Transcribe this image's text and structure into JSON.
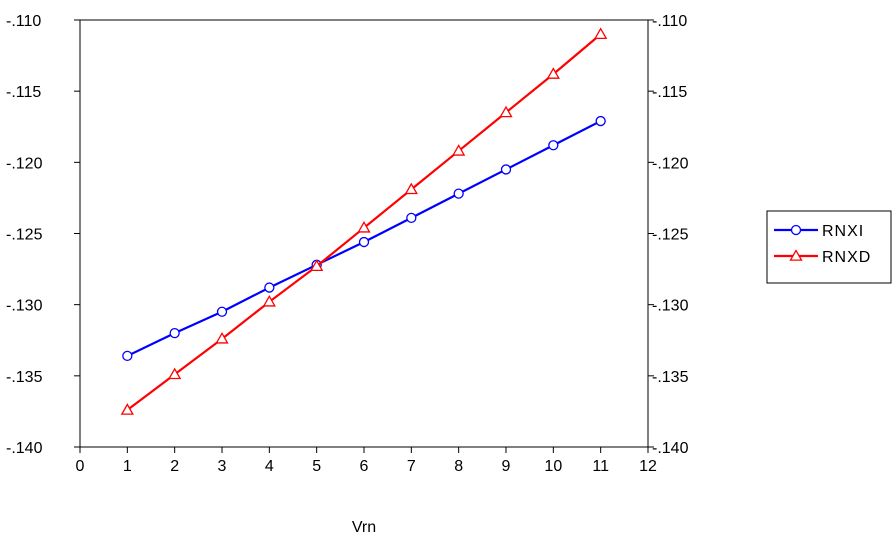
{
  "chart_data": {
    "type": "line",
    "title": "",
    "xlabel": "Vrn",
    "ylabel": "",
    "xlim": [
      0,
      12
    ],
    "ylim": [
      -0.14,
      -0.11
    ],
    "x_ticks": [
      "0",
      "1",
      "2",
      "3",
      "4",
      "5",
      "6",
      "7",
      "8",
      "9",
      "10",
      "11",
      "12"
    ],
    "y_ticks": [
      "-.110",
      "-.115",
      "-.120",
      "-.125",
      "-.130",
      "-.135",
      "-.140"
    ],
    "y_tick_values": [
      -0.11,
      -0.115,
      -0.12,
      -0.125,
      -0.13,
      -0.135,
      -0.14
    ],
    "right_axis": true,
    "grid": false,
    "legend_position": "right",
    "x": [
      1,
      2,
      3,
      4,
      5,
      6,
      7,
      8,
      9,
      10,
      11
    ],
    "series": [
      {
        "name": "RNXI",
        "color": "#0000ff",
        "marker": "circle",
        "values": [
          -0.1336,
          -0.132,
          -0.1305,
          -0.1288,
          -0.1272,
          -0.1256,
          -0.1239,
          -0.1222,
          -0.1205,
          -0.1188,
          -0.1171
        ]
      },
      {
        "name": "RNXD",
        "color": "#ff0000",
        "marker": "triangle",
        "values": [
          -0.1374,
          -0.1349,
          -0.1324,
          -0.1298,
          -0.1273,
          -0.1246,
          -0.1219,
          -0.1192,
          -0.1165,
          -0.1138,
          -0.111
        ]
      }
    ]
  }
}
